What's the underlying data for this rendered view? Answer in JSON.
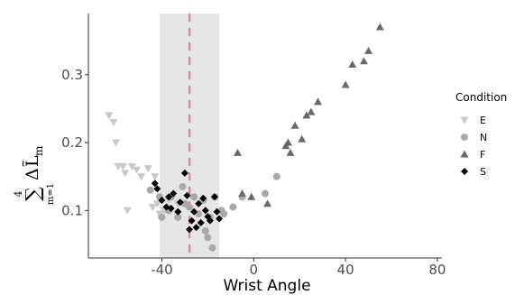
{
  "chart_data": {
    "type": "scatter",
    "title": "",
    "xlabel": "Wrist Angle",
    "ylabel": {
      "sum_symbol": "∑",
      "sum_upper": "4",
      "sum_lower": "m=1",
      "delta": "Δ",
      "base": "L̃",
      "subscript": "m"
    },
    "xlim": [
      -72,
      82
    ],
    "ylim": [
      0.03,
      0.39
    ],
    "x_ticks": [
      -40,
      0,
      40,
      80
    ],
    "y_ticks": [
      0.1,
      0.2,
      0.3
    ],
    "x_tick_labels": [
      "-40",
      "0",
      "40",
      "80"
    ],
    "y_tick_labels": [
      "0.1",
      "0.2",
      "0.3"
    ],
    "grid": false,
    "legend_position": "right",
    "legend_title": "Condition",
    "shaded_region": {
      "x_start": -41,
      "x_end": -15,
      "color": "#e6e6e6"
    },
    "reference_line": {
      "x": -28,
      "color": "#f08080",
      "style": "dashed"
    },
    "series": [
      {
        "name": "E",
        "marker": "triangle-down",
        "color": "#c8c8c8",
        "points": [
          [
            -63,
            0.24
          ],
          [
            -61,
            0.23
          ],
          [
            -60,
            0.2
          ],
          [
            -59,
            0.165
          ],
          [
            -57,
            0.165
          ],
          [
            -56,
            0.155
          ],
          [
            -53,
            0.165
          ],
          [
            -51,
            0.16
          ],
          [
            -49,
            0.15
          ],
          [
            -46,
            0.162
          ],
          [
            -43,
            0.15
          ],
          [
            -55,
            0.1
          ],
          [
            -44,
            0.105
          ],
          [
            -41,
            0.095
          ],
          [
            -42,
            0.11
          ],
          [
            -39,
            0.1
          ],
          [
            -37,
            0.115
          ],
          [
            -33,
            0.11
          ]
        ]
      },
      {
        "name": "N",
        "marker": "circle",
        "color": "#a9a9a9",
        "points": [
          [
            -45,
            0.13
          ],
          [
            -41,
            0.12
          ],
          [
            -40,
            0.09
          ],
          [
            -37,
            0.1
          ],
          [
            -36,
            0.12
          ],
          [
            -33,
            0.09
          ],
          [
            -31,
            0.135
          ],
          [
            -30,
            0.11
          ],
          [
            -28,
            0.105
          ],
          [
            -26,
            0.12
          ],
          [
            -24,
            0.095
          ],
          [
            -22,
            0.115
          ],
          [
            -21,
            0.07
          ],
          [
            -20,
            0.06
          ],
          [
            -19,
            0.09
          ],
          [
            -18,
            0.045
          ],
          [
            -17,
            0.12
          ],
          [
            -14,
            0.1
          ],
          [
            -13,
            0.095
          ],
          [
            -9,
            0.105
          ],
          [
            -5,
            0.12
          ],
          [
            5,
            0.125
          ],
          [
            10,
            0.15
          ]
        ]
      },
      {
        "name": "F",
        "marker": "triangle-up",
        "color": "#696969",
        "points": [
          [
            -7,
            0.185
          ],
          [
            -5,
            0.125
          ],
          [
            -1,
            0.12
          ],
          [
            6,
            0.11
          ],
          [
            14,
            0.195
          ],
          [
            15,
            0.2
          ],
          [
            16,
            0.185
          ],
          [
            18,
            0.225
          ],
          [
            21,
            0.205
          ],
          [
            23,
            0.24
          ],
          [
            25,
            0.245
          ],
          [
            28,
            0.26
          ],
          [
            40,
            0.285
          ],
          [
            43,
            0.315
          ],
          [
            48,
            0.32
          ],
          [
            50,
            0.335
          ],
          [
            55,
            0.37
          ]
        ]
      },
      {
        "name": "S",
        "marker": "diamond",
        "color": "#000000",
        "points": [
          [
            -43,
            0.14
          ],
          [
            -42,
            0.132
          ],
          [
            -40,
            0.115
          ],
          [
            -38,
            0.105
          ],
          [
            -37,
            0.12
          ],
          [
            -36,
            0.103
          ],
          [
            -35,
            0.125
          ],
          [
            -33,
            0.098
          ],
          [
            -32,
            0.112
          ],
          [
            -30,
            0.155
          ],
          [
            -29,
            0.122
          ],
          [
            -28,
            0.072
          ],
          [
            -27,
            0.085
          ],
          [
            -26,
            0.098
          ],
          [
            -25,
            0.075
          ],
          [
            -24,
            0.11
          ],
          [
            -23,
            0.082
          ],
          [
            -22,
            0.118
          ],
          [
            -21,
            0.1
          ],
          [
            -20,
            0.091
          ],
          [
            -19,
            0.085
          ],
          [
            -17,
            0.12
          ],
          [
            -16,
            0.098
          ],
          [
            -15,
            0.088
          ]
        ]
      }
    ]
  }
}
